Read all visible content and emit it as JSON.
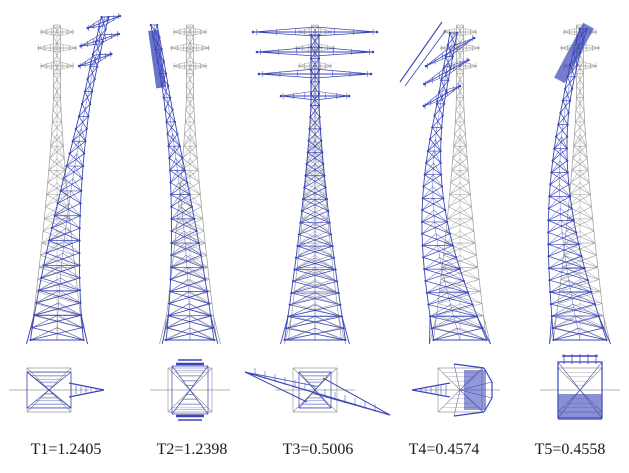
{
  "figure": {
    "colors": {
      "deformed_shape": "#3a46b8",
      "original_shape": "#9a9a9a",
      "background": "#ffffff"
    },
    "modes": [
      {
        "label": "T1=1.2405",
        "deformation": "sway-right"
      },
      {
        "label": "T2=1.2398",
        "deformation": "sway-left"
      },
      {
        "label": "T3=0.5006",
        "deformation": "torsion"
      },
      {
        "label": "T4=0.4574",
        "deformation": "s-curve-left"
      },
      {
        "label": "T5=0.4558",
        "deformation": "bend-left-top-right"
      }
    ]
  }
}
